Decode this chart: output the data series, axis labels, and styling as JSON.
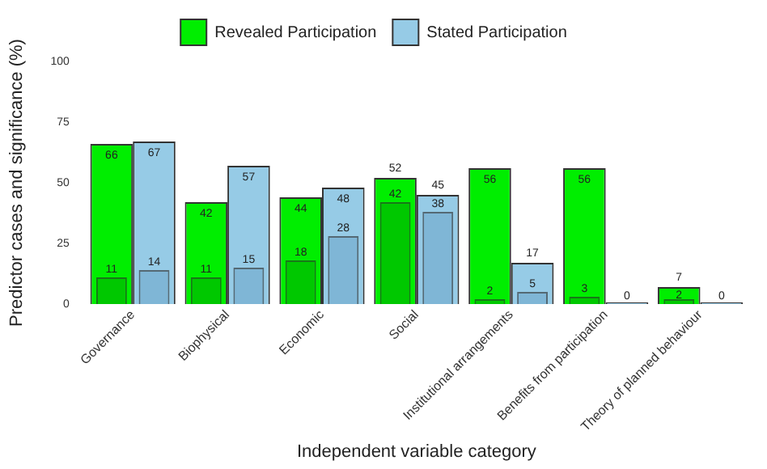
{
  "chart_data": {
    "type": "bar",
    "xlabel": "Independent variable category",
    "ylabel": "Predictor cases and significance (%)",
    "categories": [
      "Governance",
      "Biophysical",
      "Economic",
      "Social",
      "Institutional arrangements",
      "Benefits from participation",
      "Theory of planned behaviour"
    ],
    "series": [
      {
        "color": "#00c800",
        "values": [
          11,
          11,
          18,
          42,
          2,
          3,
          2
        ]
      },
      {
        "name": "Revealed Participation",
        "color": "#00ee00",
        "values": [
          66,
          42,
          44,
          52,
          56,
          56,
          7
        ]
      },
      {
        "color": "#7fb6d6",
        "values": [
          14,
          15,
          28,
          38,
          5,
          null,
          null
        ]
      },
      {
        "name": "Stated Participation",
        "color": "#96cbe6",
        "values": [
          67,
          57,
          48,
          45,
          17,
          0,
          0
        ]
      }
    ],
    "ylim": [
      0,
      100
    ],
    "yticks": [
      0,
      25,
      50,
      75,
      100
    ],
    "grid": false,
    "legend": "top",
    "data_labels": true
  }
}
